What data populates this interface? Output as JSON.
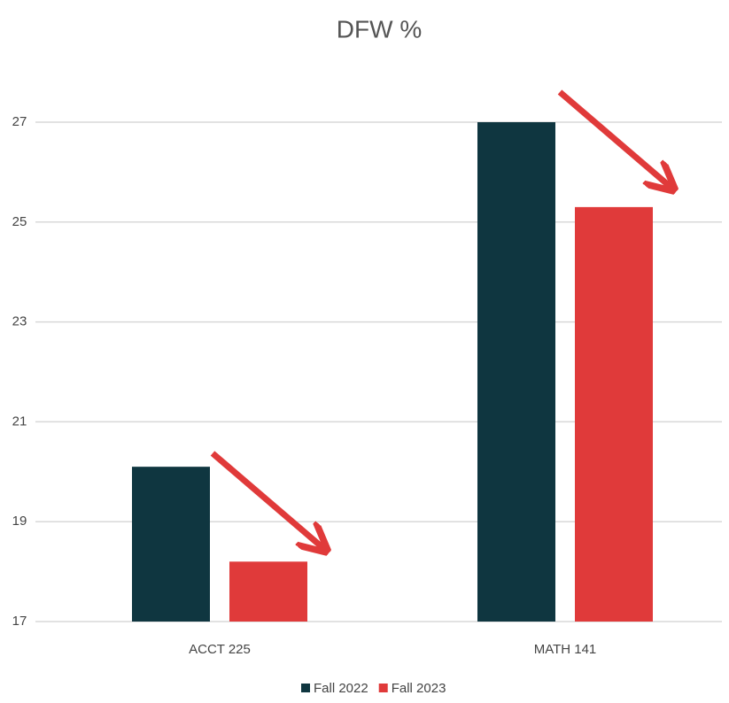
{
  "chart_data": {
    "type": "bar",
    "title": "DFW %",
    "categories": [
      "ACCT 225",
      "MATH 141"
    ],
    "series": [
      {
        "name": "Fall 2022",
        "color": "#0f3640",
        "values": [
          20.1,
          27
        ]
      },
      {
        "name": "Fall 2023",
        "color": "#e03a3a",
        "values": [
          18.2,
          25.3
        ]
      }
    ],
    "ylim": [
      17,
      27
    ],
    "yticks": [
      17,
      19,
      21,
      23,
      25,
      27
    ],
    "grid": true
  }
}
